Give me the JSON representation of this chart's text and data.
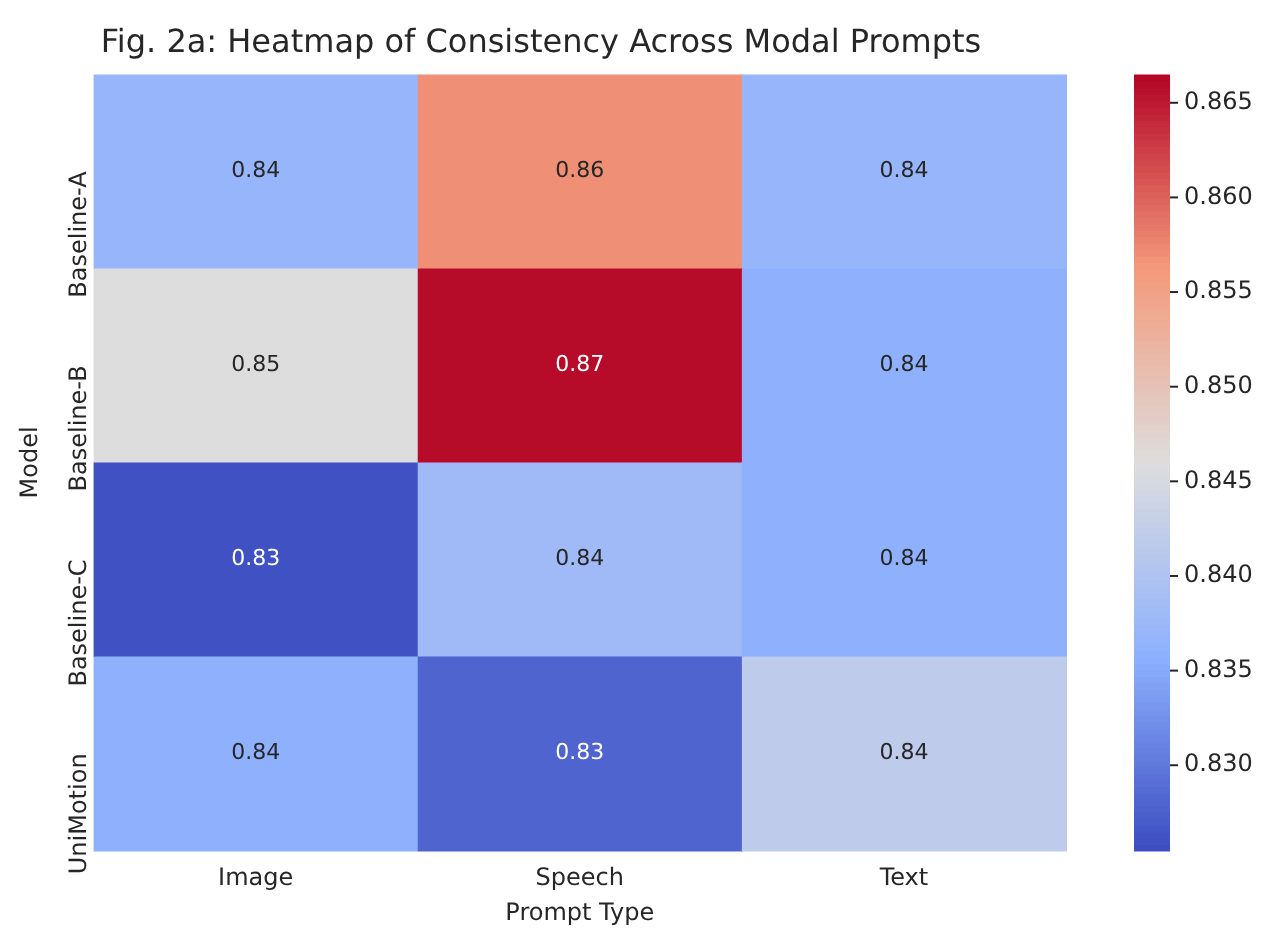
{
  "chart_data": {
    "type": "heatmap",
    "title": "Fig. 2a: Heatmap of Consistency Across Modal Prompts",
    "xlabel": "Prompt Type",
    "ylabel": "Model",
    "categories": [
      "Image",
      "Speech",
      "Text"
    ],
    "y_categories": [
      "Baseline-A",
      "Baseline-B",
      "Baseline-C",
      "UniMotion"
    ],
    "cells": [
      [
        0.837,
        0.857,
        0.837
      ],
      [
        0.846,
        0.866,
        0.836
      ],
      [
        0.826,
        0.838,
        0.836
      ],
      [
        0.836,
        0.828,
        0.842
      ]
    ],
    "cell_labels": [
      [
        "0.84",
        "0.86",
        "0.84"
      ],
      [
        "0.85",
        "0.87",
        "0.84"
      ],
      [
        "0.83",
        "0.84",
        "0.84"
      ],
      [
        "0.84",
        "0.83",
        "0.84"
      ]
    ],
    "clim": [
      0.8255,
      0.8665
    ],
    "cticks": [
      {
        "value": 0.83,
        "label": "0.830"
      },
      0.835,
      {
        "value": 0.84,
        "label": "0.840"
      },
      0.845,
      {
        "value": 0.85,
        "label": "0.850"
      },
      0.855,
      {
        "value": 0.86,
        "label": "0.860"
      },
      0.865
    ]
  }
}
